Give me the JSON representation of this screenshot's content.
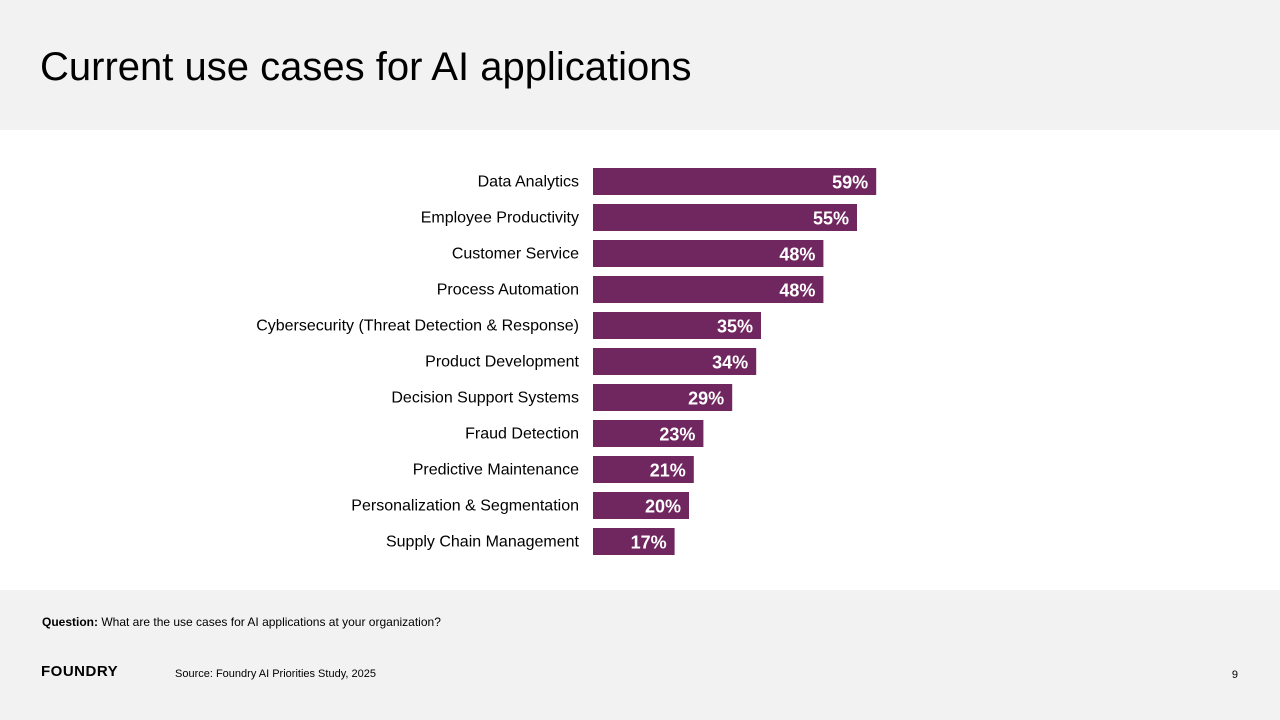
{
  "slide": {
    "title": "Current use cases for AI applications",
    "question_label": "Question:",
    "question_text": " What are the use cases for AI applications at your organization?",
    "logo_text": "FOUNDRY",
    "source": "Source: Foundry AI Priorities Study, 2025",
    "page_number": "9"
  },
  "colors": {
    "bar": "#70275f",
    "bar_label": "#ffffff",
    "header_bg": "#f2f2f2"
  },
  "chart_data": {
    "type": "bar",
    "orientation": "horizontal",
    "categories": [
      "Data Analytics",
      "Employee Productivity",
      "Customer Service",
      "Process Automation",
      "Cybersecurity (Threat Detection & Response)",
      "Product Development",
      "Decision Support Systems",
      "Fraud Detection",
      "Predictive Maintenance",
      "Personalization & Segmentation",
      "Supply Chain Management"
    ],
    "values": [
      59,
      55,
      48,
      48,
      35,
      34,
      29,
      23,
      21,
      20,
      17
    ],
    "value_labels": [
      "59%",
      "55%",
      "48%",
      "48%",
      "35%",
      "34%",
      "29%",
      "23%",
      "21%",
      "20%",
      "17%"
    ],
    "title": "",
    "xlabel": "",
    "ylabel": "",
    "xlim": [
      0,
      100
    ],
    "grid": false,
    "legend": "none"
  }
}
